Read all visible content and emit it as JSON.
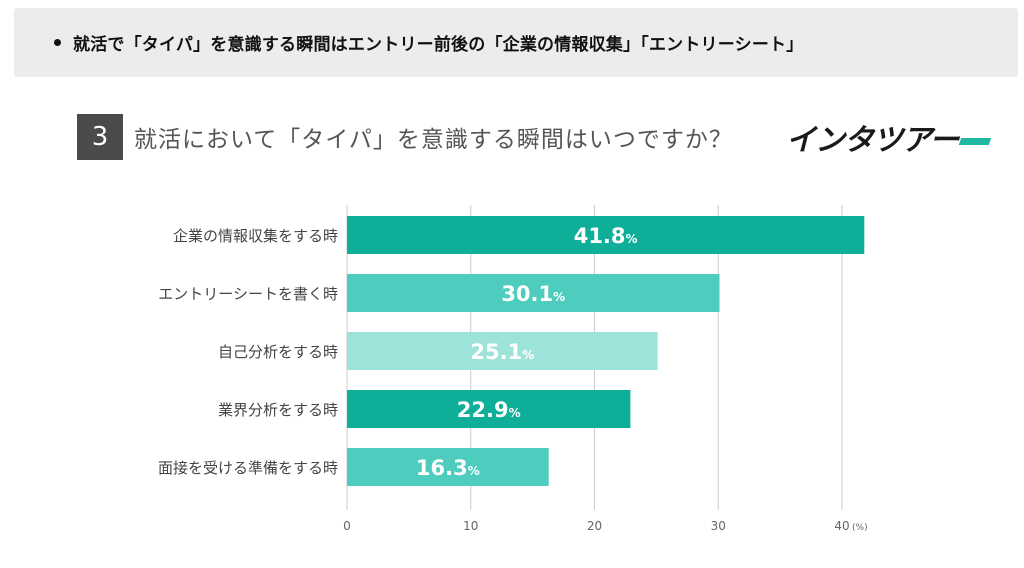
{
  "banner": {
    "text": "就活で「タイパ」を意識する瞬間はエントリー前後の「企業の情報収集」「エントリーシート」"
  },
  "question": {
    "number": "3",
    "title": "就活において「タイパ」を意識する瞬間はいつですか？"
  },
  "logo": {
    "text": "インタツアー"
  },
  "colors": {
    "dark": "#0eae98",
    "mid": "#4ecdbe",
    "light": "#9ee3da",
    "axis": "#cccccc"
  },
  "chart_data": {
    "type": "bar",
    "orientation": "horizontal",
    "categories": [
      "企業の情報収集をする時",
      "エントリーシートを書く時",
      "自己分析をする時",
      "業界分析をする時",
      "面接を受ける準備をする時"
    ],
    "values": [
      41.8,
      30.1,
      25.1,
      22.9,
      16.3
    ],
    "value_labels": [
      "41.8",
      "30.1",
      "25.1",
      "22.9",
      "16.3"
    ],
    "value_suffix": "%",
    "bar_colors": [
      "#0eae98",
      "#4ecdbe",
      "#9ee3da",
      "#0eae98",
      "#4ecdbe"
    ],
    "xlim": [
      0,
      40
    ],
    "ticks": [
      0,
      10,
      20,
      30,
      40
    ],
    "unit": "(%)",
    "grid": true
  }
}
